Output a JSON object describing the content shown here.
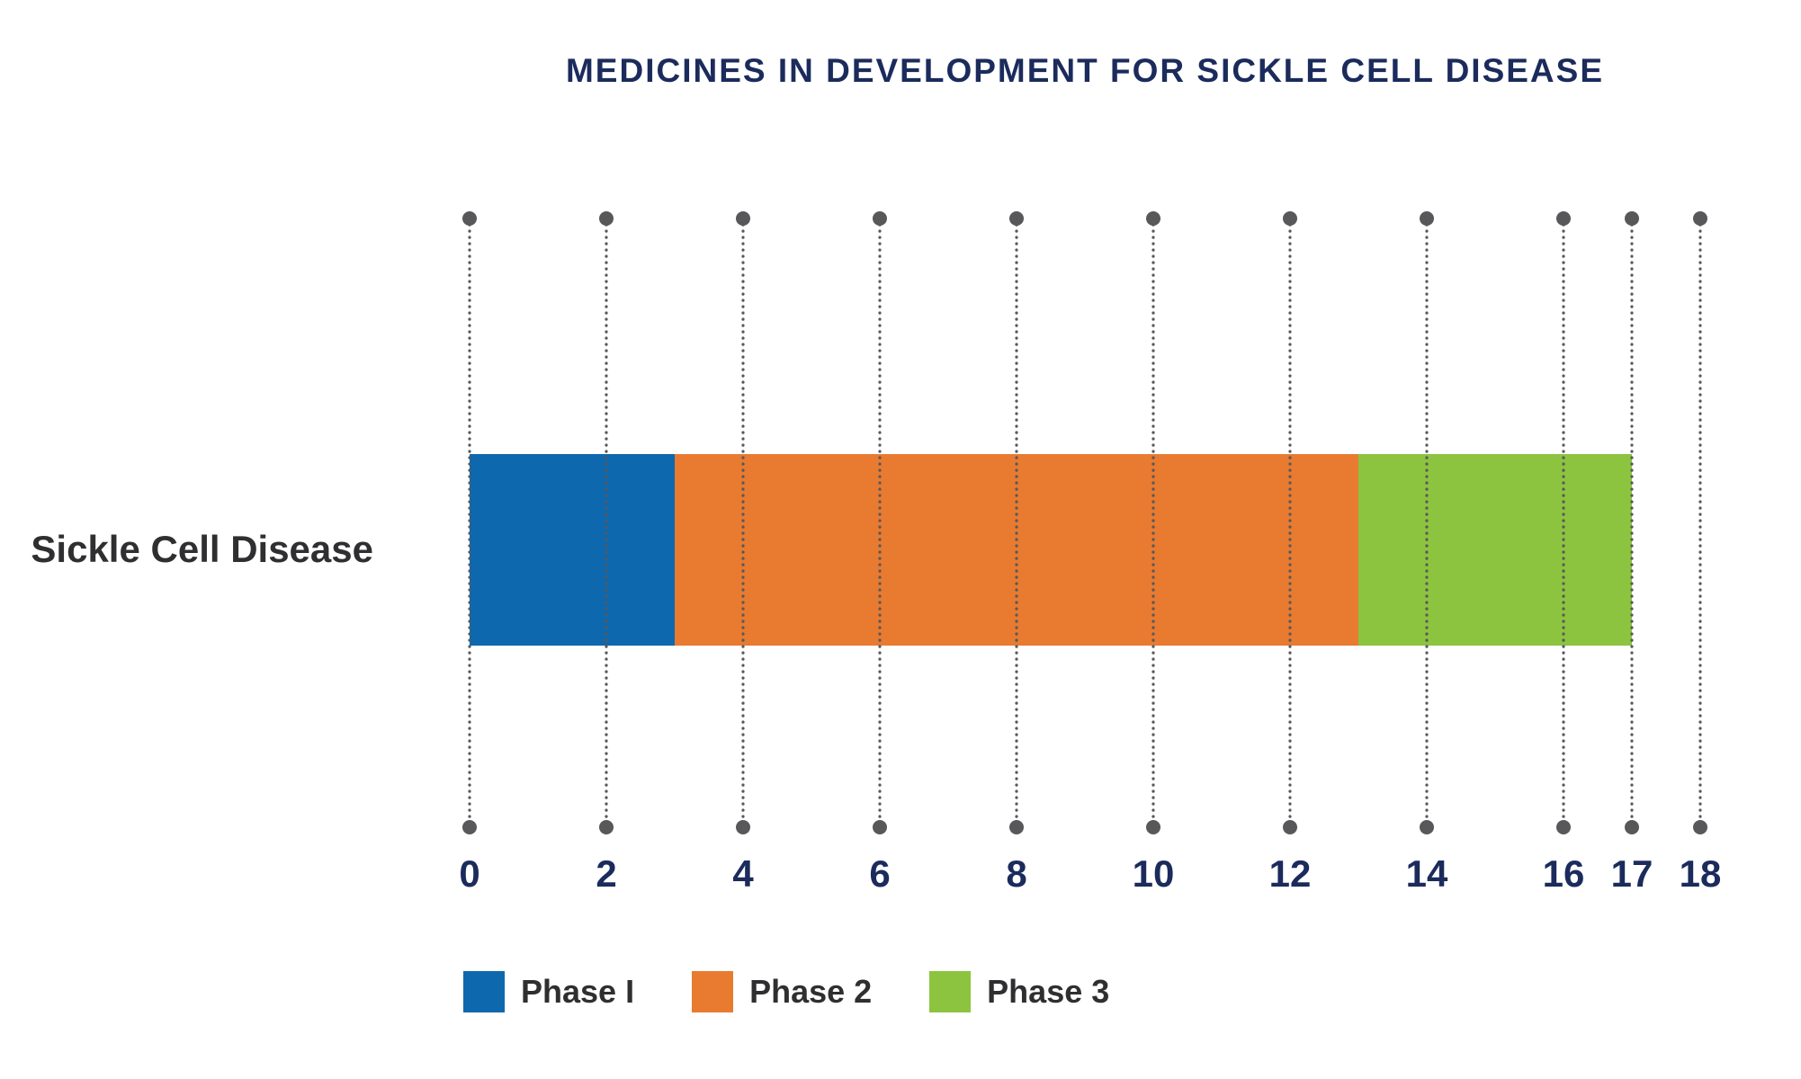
{
  "chart_data": {
    "type": "bar",
    "orientation": "horizontal",
    "stacked": true,
    "title": "MEDICINES IN DEVELOPMENT FOR SICKLE CELL DISEASE",
    "categories": [
      "Sickle Cell Disease"
    ],
    "series": [
      {
        "name": "Phase I",
        "values": [
          3
        ],
        "color": "#0E68AE"
      },
      {
        "name": "Phase 2",
        "values": [
          10
        ],
        "color": "#E87B30"
      },
      {
        "name": "Phase 3",
        "values": [
          4
        ],
        "color": "#8CC43F"
      }
    ],
    "total_medicines": 17,
    "x_ticks": [
      0,
      2,
      4,
      6,
      8,
      10,
      12,
      14,
      16,
      17,
      18
    ],
    "xlim": [
      0,
      18
    ],
    "grid": true,
    "grid_style": "dotted-vertical-with-end-dots",
    "grid_color": "#58585A",
    "title_color": "#1B2B5C",
    "tick_label_color": "#1B2B5C",
    "text_color": "#2F2F31",
    "legend_position": "bottom"
  }
}
